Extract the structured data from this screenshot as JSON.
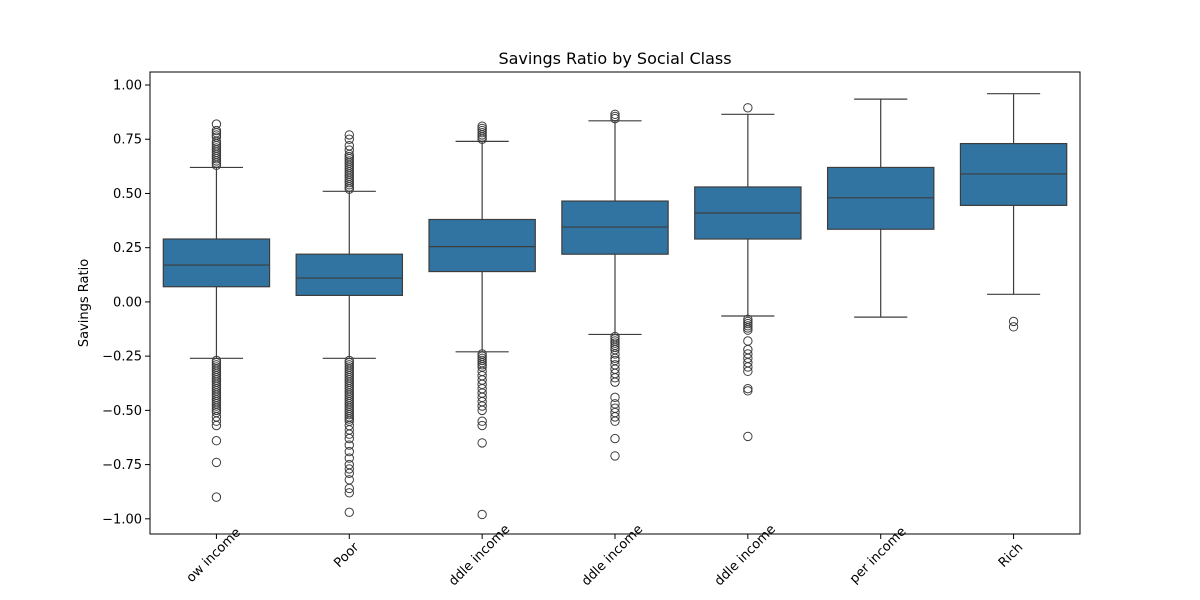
{
  "chart_data": {
    "type": "box",
    "title": "Savings Ratio by Social Class",
    "xlabel": "",
    "ylabel": "Savings Ratio",
    "ylim": [
      -1.07,
      1.06
    ],
    "yticks": [
      -1.0,
      -0.75,
      -0.5,
      -0.25,
      0.0,
      0.25,
      0.5,
      0.75,
      1.0
    ],
    "ytick_labels": [
      "−1.00",
      "−0.75",
      "−0.50",
      "−0.25",
      "0.00",
      "0.25",
      "0.50",
      "0.75",
      "1.00"
    ],
    "grid": false,
    "box_color": "#3274a1",
    "line_color": "#3d3d3d",
    "categories": [
      "ow income",
      "Poor",
      "ddle income",
      "ddle income",
      "ddle income",
      "per income",
      "Rich"
    ],
    "boxes": [
      {
        "whisker_low": -0.26,
        "q1": 0.07,
        "median": 0.17,
        "q3": 0.29,
        "whisker_high": 0.62,
        "outliers": [
          0.63,
          0.64,
          0.65,
          0.66,
          0.67,
          0.68,
          0.69,
          0.7,
          0.71,
          0.72,
          0.73,
          0.74,
          0.76,
          0.77,
          0.78,
          0.79,
          0.82,
          -0.27,
          -0.28,
          -0.29,
          -0.3,
          -0.31,
          -0.32,
          -0.33,
          -0.34,
          -0.35,
          -0.36,
          -0.37,
          -0.38,
          -0.39,
          -0.4,
          -0.41,
          -0.42,
          -0.43,
          -0.44,
          -0.45,
          -0.46,
          -0.47,
          -0.48,
          -0.49,
          -0.5,
          -0.51,
          -0.53,
          -0.55,
          -0.57,
          -0.64,
          -0.74,
          -0.9
        ]
      },
      {
        "whisker_low": -0.26,
        "q1": 0.03,
        "median": 0.11,
        "q3": 0.22,
        "whisker_high": 0.51,
        "outliers": [
          0.52,
          0.53,
          0.54,
          0.55,
          0.56,
          0.57,
          0.58,
          0.59,
          0.6,
          0.61,
          0.62,
          0.63,
          0.64,
          0.65,
          0.66,
          0.67,
          0.68,
          0.7,
          0.72,
          0.75,
          0.77,
          -0.27,
          -0.28,
          -0.29,
          -0.3,
          -0.31,
          -0.32,
          -0.33,
          -0.34,
          -0.35,
          -0.36,
          -0.37,
          -0.38,
          -0.39,
          -0.4,
          -0.41,
          -0.42,
          -0.43,
          -0.44,
          -0.45,
          -0.46,
          -0.47,
          -0.48,
          -0.49,
          -0.5,
          -0.51,
          -0.52,
          -0.53,
          -0.54,
          -0.55,
          -0.57,
          -0.59,
          -0.61,
          -0.63,
          -0.66,
          -0.69,
          -0.72,
          -0.75,
          -0.77,
          -0.79,
          -0.82,
          -0.86,
          -0.88,
          -0.97
        ]
      },
      {
        "whisker_low": -0.23,
        "q1": 0.14,
        "median": 0.255,
        "q3": 0.38,
        "whisker_high": 0.74,
        "outliers": [
          0.75,
          0.76,
          0.77,
          0.78,
          0.79,
          0.8,
          0.81,
          -0.24,
          -0.25,
          -0.26,
          -0.27,
          -0.28,
          -0.29,
          -0.3,
          -0.32,
          -0.34,
          -0.36,
          -0.38,
          -0.4,
          -0.42,
          -0.44,
          -0.46,
          -0.48,
          -0.5,
          -0.55,
          -0.57,
          -0.65,
          -0.98
        ]
      },
      {
        "whisker_low": -0.15,
        "q1": 0.22,
        "median": 0.345,
        "q3": 0.465,
        "whisker_high": 0.835,
        "outliers": [
          0.845,
          0.855,
          0.865,
          -0.16,
          -0.17,
          -0.18,
          -0.19,
          -0.2,
          -0.21,
          -0.22,
          -0.24,
          -0.26,
          -0.27,
          -0.29,
          -0.31,
          -0.33,
          -0.35,
          -0.37,
          -0.44,
          -0.47,
          -0.49,
          -0.51,
          -0.53,
          -0.55,
          -0.63,
          -0.71
        ]
      },
      {
        "whisker_low": -0.065,
        "q1": 0.29,
        "median": 0.41,
        "q3": 0.53,
        "whisker_high": 0.865,
        "outliers": [
          0.895,
          -0.08,
          -0.09,
          -0.1,
          -0.11,
          -0.12,
          -0.13,
          -0.18,
          -0.22,
          -0.24,
          -0.26,
          -0.28,
          -0.3,
          -0.32,
          -0.4,
          -0.41,
          -0.62
        ]
      },
      {
        "whisker_low": -0.07,
        "q1": 0.335,
        "median": 0.48,
        "q3": 0.62,
        "whisker_high": 0.935,
        "outliers": []
      },
      {
        "whisker_low": 0.035,
        "q1": 0.445,
        "median": 0.59,
        "q3": 0.73,
        "whisker_high": 0.96,
        "outliers": [
          -0.09,
          -0.115
        ]
      }
    ]
  }
}
